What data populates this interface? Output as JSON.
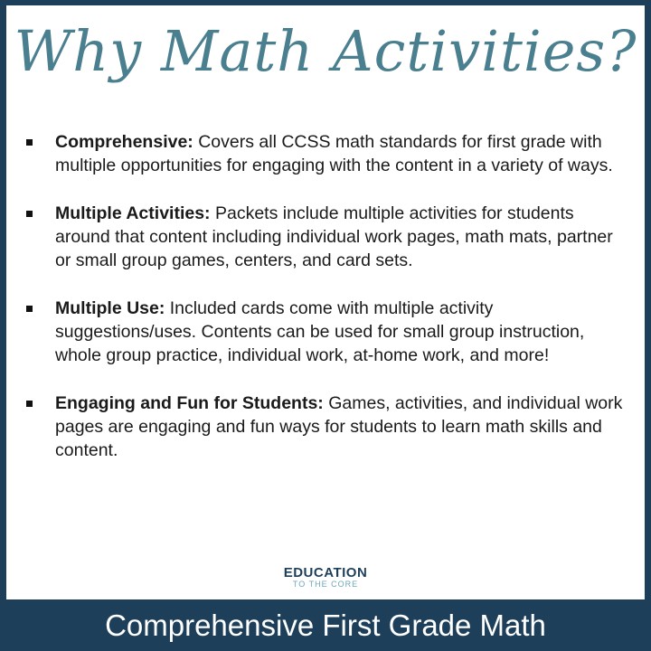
{
  "title": "Why Math Activities?",
  "items": [
    {
      "heading": "Comprehensive:",
      "text": " Covers all CCSS math standards for first grade with multiple opportunities for engaging with the content in a variety of ways."
    },
    {
      "heading": "Multiple Activities:",
      "text": " Packets include multiple activities for students around that content including individual work pages, math mats, partner or small group games, centers, and card sets."
    },
    {
      "heading": "Multiple Use:",
      "text": " Included cards come with multiple activity suggestions/uses. Contents can be used for small group instruction, whole group practice, individual work, at-home work, and more!"
    },
    {
      "heading": "Engaging and Fun for Students:",
      "text": " Games, activities, and individual work pages are engaging and fun ways for students to learn math skills and content."
    }
  ],
  "logo": {
    "line1": "EDUCATION",
    "line2": "TO THE CORE"
  },
  "banner": "Comprehensive First Grade Math",
  "colors": {
    "border": "#1e3f5a",
    "title": "#4a7f8f",
    "logo_accent": "#6ea7b8"
  }
}
